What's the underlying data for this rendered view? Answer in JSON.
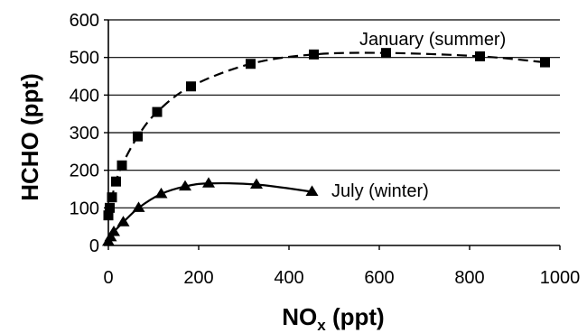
{
  "chart_data": {
    "type": "scatter",
    "title": "",
    "xlabel_main": "NO",
    "xlabel_sub": "x",
    "xlabel_unit": " (ppt)",
    "ylabel": "HCHO (ppt)",
    "xlim": [
      0,
      1000
    ],
    "ylim": [
      0,
      600
    ],
    "x_ticks": [
      "0",
      "200",
      "400",
      "600",
      "800",
      "1000"
    ],
    "y_ticks": [
      "0",
      "100",
      "200",
      "300",
      "400",
      "500",
      "600"
    ],
    "grid": "horizontal",
    "series": [
      {
        "name": "January (summer)",
        "marker": "square",
        "line_style": "dashed",
        "points": [
          {
            "x": 0,
            "y": 80
          },
          {
            "x": 3,
            "y": 100
          },
          {
            "x": 8,
            "y": 128
          },
          {
            "x": 17,
            "y": 170
          },
          {
            "x": 30,
            "y": 213
          },
          {
            "x": 65,
            "y": 290
          },
          {
            "x": 108,
            "y": 355
          },
          {
            "x": 183,
            "y": 423
          },
          {
            "x": 315,
            "y": 483
          },
          {
            "x": 455,
            "y": 508
          },
          {
            "x": 615,
            "y": 512
          },
          {
            "x": 823,
            "y": 503
          },
          {
            "x": 967,
            "y": 487
          }
        ]
      },
      {
        "name": "July (winter)",
        "marker": "triangle",
        "line_style": "solid",
        "points": [
          {
            "x": 0,
            "y": 10
          },
          {
            "x": 5,
            "y": 22
          },
          {
            "x": 12,
            "y": 36
          },
          {
            "x": 33,
            "y": 62
          },
          {
            "x": 67,
            "y": 100
          },
          {
            "x": 117,
            "y": 137
          },
          {
            "x": 170,
            "y": 157
          },
          {
            "x": 222,
            "y": 165
          },
          {
            "x": 328,
            "y": 162
          },
          {
            "x": 451,
            "y": 143
          }
        ]
      }
    ]
  }
}
